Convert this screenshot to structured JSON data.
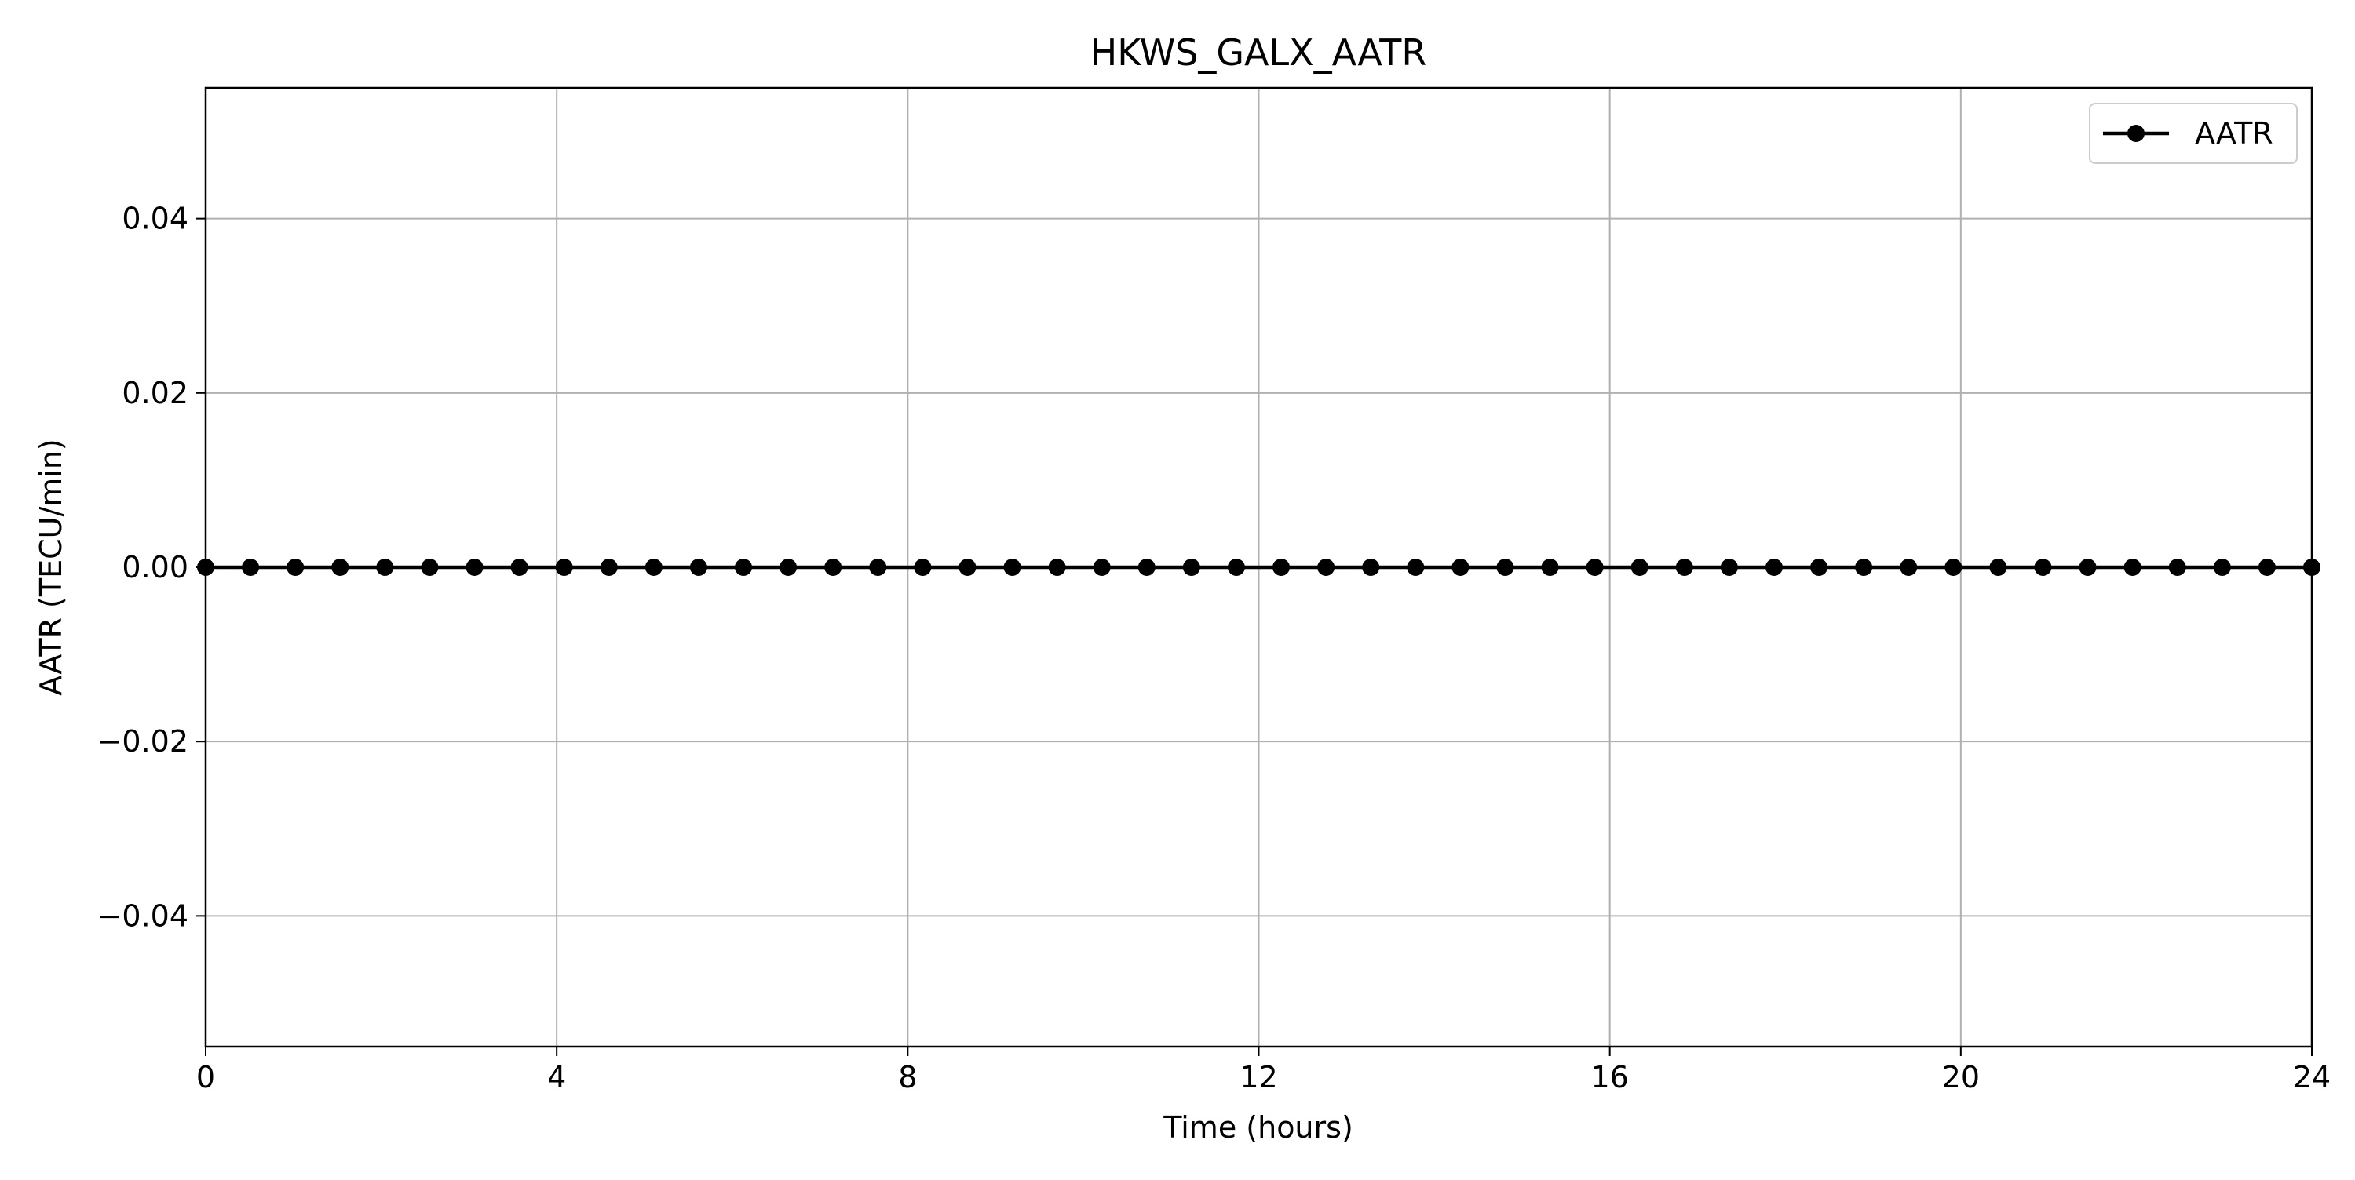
{
  "chart_data": {
    "type": "line",
    "title": "HKWS_GALX_AATR",
    "xlabel": "Time (hours)",
    "ylabel": "AATR (TECU/min)",
    "xlim": [
      0,
      24
    ],
    "ylim": [
      -0.055,
      0.055
    ],
    "x_ticks": [
      0,
      4,
      8,
      12,
      16,
      20,
      24
    ],
    "x_tick_labels": [
      "0",
      "4",
      "8",
      "12",
      "16",
      "20",
      "24"
    ],
    "y_ticks": [
      -0.04,
      -0.02,
      0.0,
      0.02,
      0.04
    ],
    "y_tick_labels": [
      "−0.04",
      "−0.02",
      "0.00",
      "0.02",
      "0.04"
    ],
    "grid": true,
    "legend_position": "top-right",
    "series": [
      {
        "name": "AATR",
        "color": "#000000",
        "marker": "circle",
        "x": [
          0,
          0.5106,
          1.0213,
          1.5319,
          2.0426,
          2.5532,
          3.0638,
          3.5745,
          4.0851,
          4.5957,
          5.1064,
          5.617,
          6.1277,
          6.6383,
          7.1489,
          7.6596,
          8.1702,
          8.6809,
          9.1915,
          9.7021,
          10.2128,
          10.7234,
          11.234,
          11.7447,
          12.2553,
          12.766,
          13.2766,
          13.7872,
          14.2979,
          14.8085,
          15.3191,
          15.8298,
          16.3404,
          16.8511,
          17.3617,
          17.8723,
          18.383,
          18.8936,
          19.4043,
          19.9149,
          20.4255,
          20.9362,
          21.4468,
          21.9574,
          22.4681,
          22.9787,
          23.4894,
          24
        ],
        "y": [
          0,
          0,
          0,
          0,
          0,
          0,
          0,
          0,
          0,
          0,
          0,
          0,
          0,
          0,
          0,
          0,
          0,
          0,
          0,
          0,
          0,
          0,
          0,
          0,
          0,
          0,
          0,
          0,
          0,
          0,
          0,
          0,
          0,
          0,
          0,
          0,
          0,
          0,
          0,
          0,
          0,
          0,
          0,
          0,
          0,
          0,
          0,
          0
        ]
      }
    ]
  }
}
